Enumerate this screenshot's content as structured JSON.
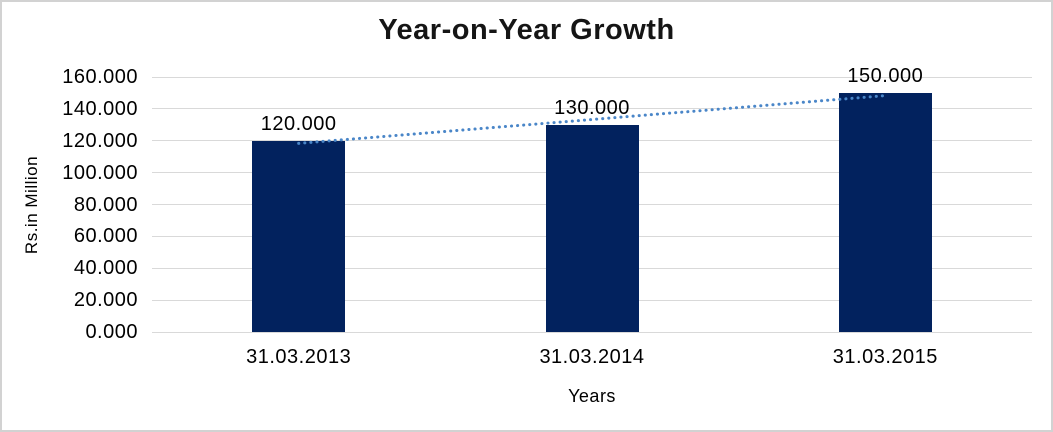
{
  "window": {
    "background": "#ffffff",
    "border_color": "#d2d2d2"
  },
  "chart_data": {
    "type": "bar",
    "title": "Year-on-Year Growth",
    "xlabel": "Years",
    "ylabel": "Rs.in Million",
    "categories": [
      "31.03.2013",
      "31.03.2014",
      "31.03.2015"
    ],
    "values": [
      120,
      130,
      150
    ],
    "data_labels": [
      "120.000",
      "130.000",
      "150.000"
    ],
    "y_ticks": [
      "160.000",
      "140.000",
      "120.000",
      "100.000",
      "80.000",
      "60.000",
      "40.000",
      "20.000",
      "0.000"
    ],
    "ylim": [
      0,
      160
    ],
    "grid": true,
    "legend": "none",
    "bar_color": "#02225e",
    "gridline_color": "#d9d9d9",
    "trendline": {
      "type": "linear",
      "style": "dotted",
      "color": "#4a86c8",
      "fitted_values": [
        118.33,
        133.33,
        148.33
      ]
    }
  }
}
